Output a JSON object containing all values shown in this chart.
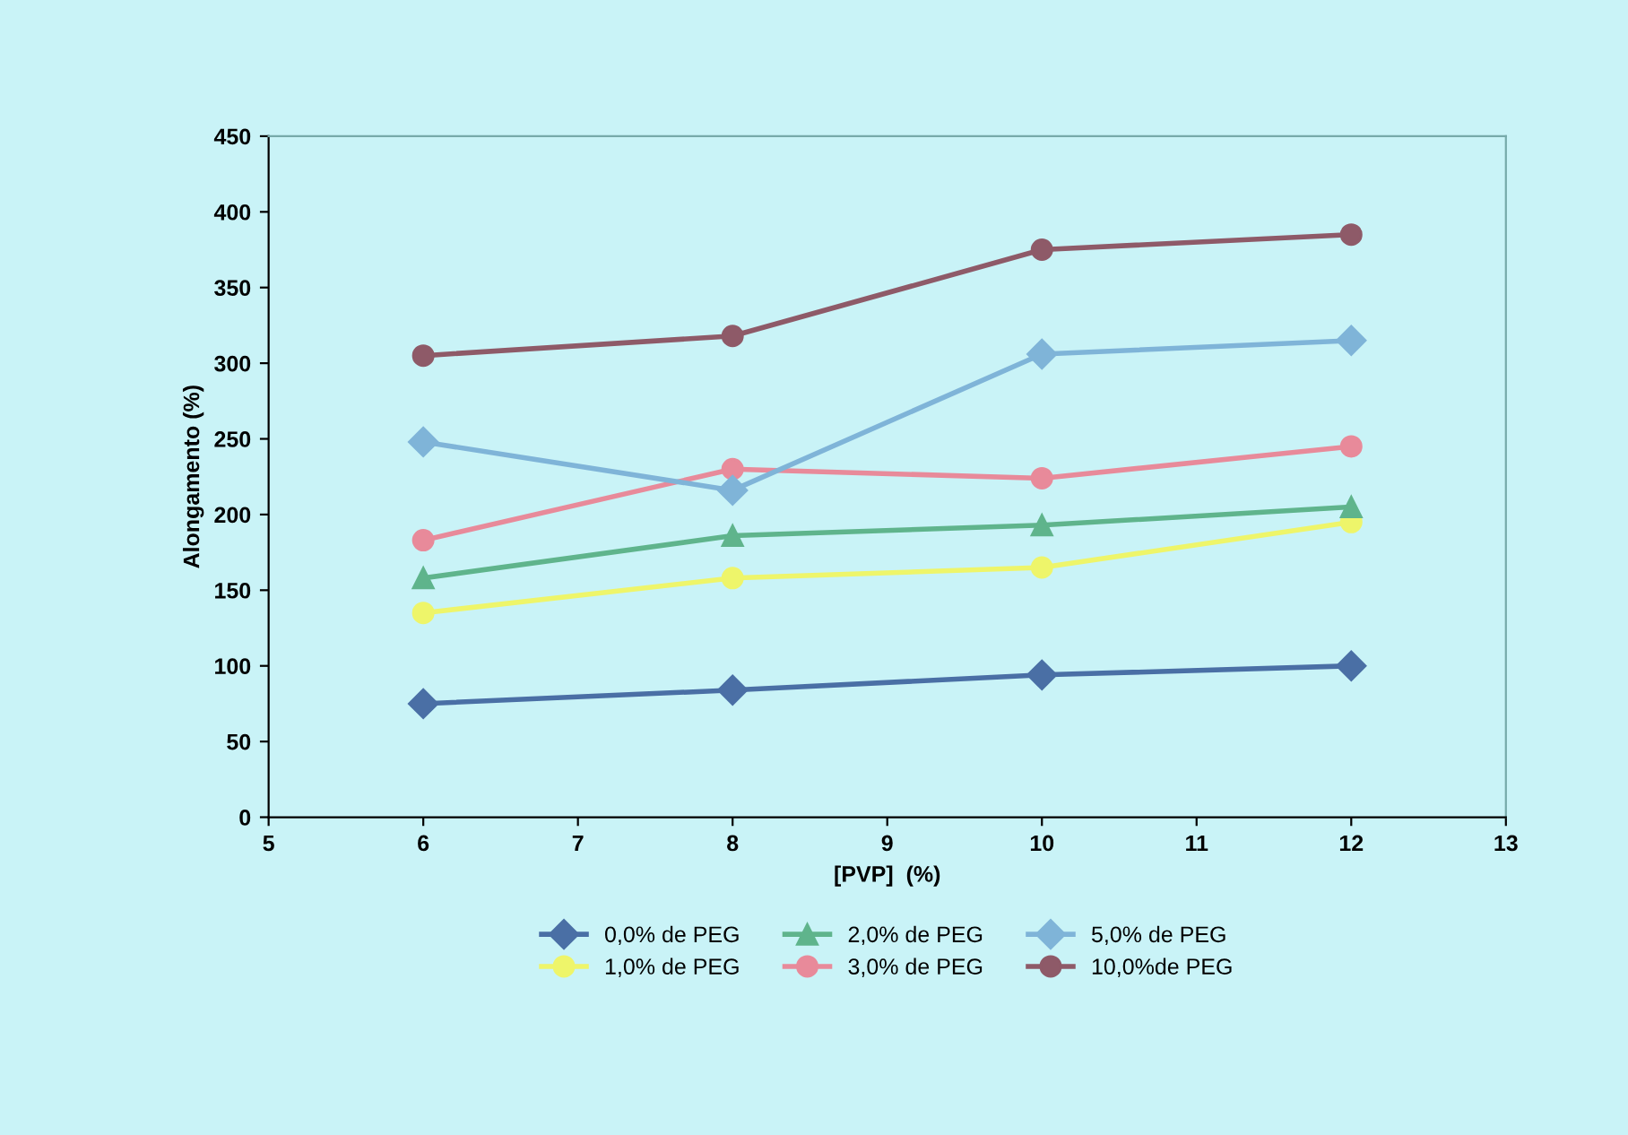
{
  "chart_data": {
    "type": "line",
    "xlabel": "[PVP]  (%)",
    "ylabel": "Alongamento (%)",
    "x": [
      6,
      8,
      10,
      12
    ],
    "xlim": [
      5,
      13
    ],
    "xticks": [
      5,
      6,
      7,
      8,
      9,
      10,
      11,
      12,
      13
    ],
    "ylim": [
      0,
      450
    ],
    "yticks": [
      0,
      50,
      100,
      150,
      200,
      250,
      300,
      350,
      400,
      450
    ],
    "grid": false,
    "legend": "bottom",
    "series": [
      {
        "name": "0,0% de PEG",
        "color": "#4a6fa5",
        "marker": "diamond",
        "values": [
          75,
          84,
          94,
          100
        ]
      },
      {
        "name": "1,0% de PEG",
        "color": "#eef56a",
        "marker": "circle",
        "values": [
          135,
          158,
          165,
          195
        ]
      },
      {
        "name": "2,0% de PEG",
        "color": "#5fb48c",
        "marker": "triangle",
        "values": [
          158,
          186,
          193,
          205
        ]
      },
      {
        "name": "3,0% de PEG",
        "color": "#e88a9a",
        "marker": "circle",
        "values": [
          183,
          230,
          224,
          245
        ]
      },
      {
        "name": "5,0% de PEG",
        "color": "#7fb4d8",
        "marker": "diamond",
        "values": [
          248,
          216,
          306,
          315
        ]
      },
      {
        "name": "10,0%de PEG",
        "color": "#8e5a68",
        "marker": "circle",
        "values": [
          305,
          318,
          375,
          385
        ]
      }
    ]
  }
}
